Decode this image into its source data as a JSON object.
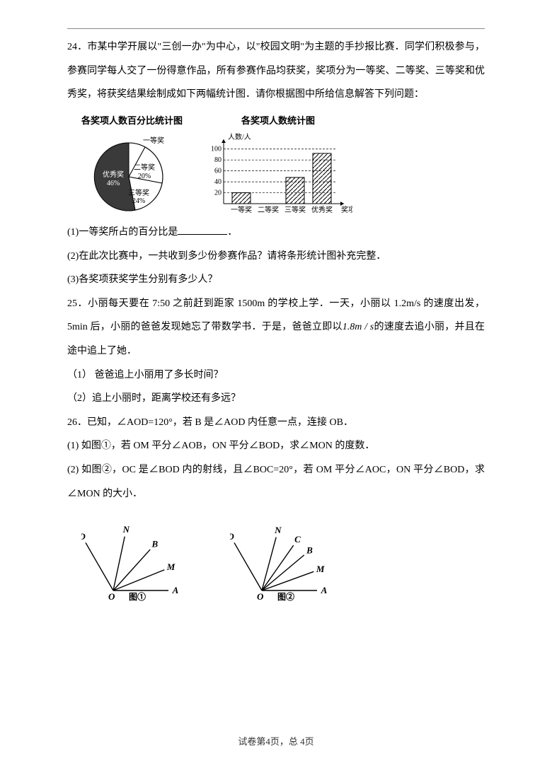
{
  "q24": {
    "num": "24．",
    "p1": "市某中学开展以\"三创一办\"为中心，以\"校园文明\"为主题的手抄报比赛．同学们积极参与，参赛同学每人交了一份得意作品，所有参赛作品均获奖，奖项分为一等奖、二等奖、三等奖和优秀奖，将获奖结果绘制成如下两幅统计图．请你根据图中所给信息解答下列问题：",
    "pie_title": "各奖项人数百分比统计图",
    "bar_title": "各奖项人数统计图",
    "sub1": "(1)一等奖所占的百分比是",
    "sub1_end": "．",
    "sub2": "(2)在此次比赛中，一共收到多少份参赛作品？请将条形统计图补充完整．",
    "sub3": "(3)各奖项获奖学生分别有多少人？"
  },
  "pie": {
    "slices": [
      {
        "label": "一等奖",
        "color": "#ffffff"
      },
      {
        "label": "二等奖",
        "pct": "20%",
        "color": "#ffffff"
      },
      {
        "label": "三等奖",
        "pct": "24%",
        "color": "#ffffff"
      },
      {
        "label": "优秀奖",
        "pct": "46%",
        "color": "#3a3a3a"
      }
    ],
    "stroke": "#000000",
    "bg": "#ffffff"
  },
  "bar": {
    "ylabel": "人数/人",
    "xlabel": "奖项",
    "yticks": [
      20,
      40,
      60,
      80,
      100
    ],
    "ylim": [
      0,
      110
    ],
    "categories": [
      "一等奖",
      "二等奖",
      "三等奖",
      "优秀奖"
    ],
    "values": [
      20,
      null,
      48,
      92
    ],
    "bar_fill": "hatch",
    "axis_color": "#000000",
    "grid_dash": "3,2",
    "font_size": 10
  },
  "q25": {
    "num": "25．",
    "p1a": "小丽每天要在 7:50 之前赶到距家 1500m 的学校上学．一天，小丽以 1.2m/s 的速度出发，5min 后，小丽的爸爸发现她忘了带数学书．于是，爸爸立即以",
    "rate": "1.8m / s",
    "p1b": "的速度去追小丽，并且在途中追上了她．",
    "sub1": "（1）  爸爸追上小丽用了多长时间？",
    "sub2": "（2）追上小丽时，距离学校还有多远？"
  },
  "q26": {
    "num": "26．",
    "p1": "已知，∠AOD=120°，若 B 是∠AOD 内任意一点，连接 OB．",
    "sub1": "(1)  如图①，若 OM 平分∠AOB，ON 平分∠BOD，求∠MON 的度数．",
    "sub2": "(2)  如图②，OC 是∠BOD 内的射线，且∠BOC=20°，若 OM 平分∠AOC，ON 平分∠BOD，求∠MON 的大小．"
  },
  "diag": {
    "labels": [
      "D",
      "N",
      "B",
      "M",
      "A",
      "O"
    ],
    "extra": "C",
    "cap1": "图①",
    "cap2": "图②",
    "stroke": "#000000",
    "font": "italic bold 13px Times"
  },
  "footer": "试卷第4页，总 4页"
}
